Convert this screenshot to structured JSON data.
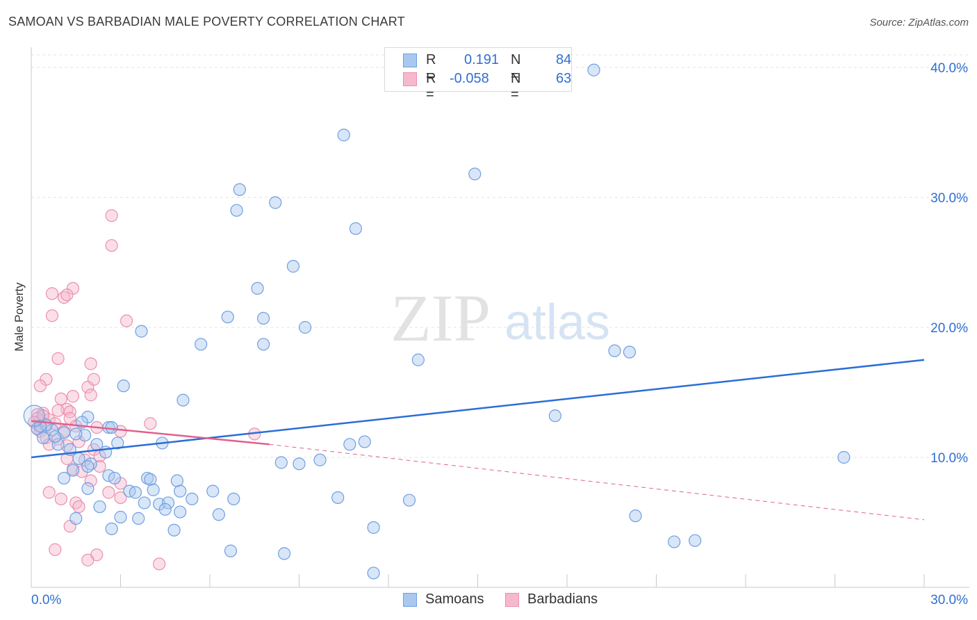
{
  "header": {
    "title": "SAMOAN VS BARBADIAN MALE POVERTY CORRELATION CHART",
    "source": "Source: ZipAtlas.com"
  },
  "watermark": {
    "zip": "ZIP",
    "atlas": "atlas"
  },
  "legend": {
    "r_label": "R =",
    "n_label": "N =",
    "samoans": {
      "r": "0.191",
      "n": "84"
    },
    "barbadians": {
      "r": "-0.058",
      "n": "63"
    }
  },
  "colors": {
    "samoans_fill": "#a9c8f0",
    "samoans_stroke": "#6f9fe0",
    "samoans_line": "#2a6ed6",
    "barbadians_fill": "#f6b8cc",
    "barbadians_stroke": "#ea8fae",
    "barbadians_line": "#e0608c",
    "axis_text": "#2f6fd0"
  },
  "chart_data": {
    "type": "scatter",
    "title": "SAMOAN VS BARBADIAN MALE POVERTY CORRELATION CHART",
    "xlabel": "",
    "ylabel": "Male Poverty",
    "xlim": [
      0,
      30
    ],
    "ylim": [
      0,
      40
    ],
    "x_tick_labels": [
      "0.0%",
      "30.0%"
    ],
    "y_ticks": [
      10,
      20,
      30,
      40
    ],
    "y_tick_labels": [
      "10.0%",
      "20.0%",
      "30.0%",
      "40.0%"
    ],
    "grid": true,
    "legend_position": "top-center and bottom",
    "series": [
      {
        "name": "Samoans",
        "trend": {
          "x": [
            0,
            30
          ],
          "y": [
            10.0,
            17.5
          ]
        },
        "points": [
          [
            18.9,
            39.8
          ],
          [
            10.5,
            34.8
          ],
          [
            14.9,
            31.8
          ],
          [
            7.0,
            30.6
          ],
          [
            8.2,
            29.6
          ],
          [
            6.9,
            29.0
          ],
          [
            10.9,
            27.6
          ],
          [
            8.8,
            24.7
          ],
          [
            7.6,
            23.0
          ],
          [
            6.6,
            20.8
          ],
          [
            7.8,
            20.7
          ],
          [
            9.2,
            20.0
          ],
          [
            3.7,
            19.7
          ],
          [
            7.8,
            18.7
          ],
          [
            5.7,
            18.7
          ],
          [
            13.0,
            17.5
          ],
          [
            19.6,
            18.2
          ],
          [
            20.1,
            18.1
          ],
          [
            3.1,
            15.5
          ],
          [
            5.1,
            14.4
          ],
          [
            17.6,
            13.2
          ],
          [
            1.9,
            13.1
          ],
          [
            2.6,
            12.3
          ],
          [
            2.7,
            12.3
          ],
          [
            1.8,
            11.7
          ],
          [
            1.7,
            12.7
          ],
          [
            1.5,
            11.8
          ],
          [
            2.2,
            11.0
          ],
          [
            2.9,
            11.1
          ],
          [
            4.4,
            11.1
          ],
          [
            11.2,
            11.2
          ],
          [
            10.7,
            11.0
          ],
          [
            1.1,
            11.9
          ],
          [
            0.7,
            12.1
          ],
          [
            0.9,
            11.0
          ],
          [
            0.2,
            12.2
          ],
          [
            0.5,
            12.5
          ],
          [
            0.4,
            11.5
          ],
          [
            0.8,
            11.6
          ],
          [
            0.3,
            12.4
          ],
          [
            1.3,
            10.6
          ],
          [
            2.5,
            10.4
          ],
          [
            1.6,
            9.9
          ],
          [
            8.4,
            9.6
          ],
          [
            9.0,
            9.5
          ],
          [
            9.7,
            9.8
          ],
          [
            2.0,
            9.5
          ],
          [
            1.9,
            9.3
          ],
          [
            1.4,
            9.0
          ],
          [
            1.1,
            8.4
          ],
          [
            2.6,
            8.6
          ],
          [
            2.8,
            8.4
          ],
          [
            3.9,
            8.4
          ],
          [
            4.0,
            8.3
          ],
          [
            4.9,
            8.2
          ],
          [
            3.3,
            7.4
          ],
          [
            3.5,
            7.3
          ],
          [
            5.0,
            7.4
          ],
          [
            4.1,
            7.5
          ],
          [
            6.1,
            7.4
          ],
          [
            3.8,
            6.5
          ],
          [
            4.3,
            6.4
          ],
          [
            4.6,
            6.5
          ],
          [
            4.5,
            6.0
          ],
          [
            5.4,
            6.8
          ],
          [
            6.8,
            6.8
          ],
          [
            10.3,
            6.9
          ],
          [
            12.7,
            6.7
          ],
          [
            1.9,
            7.6
          ],
          [
            2.3,
            6.2
          ],
          [
            3.0,
            5.4
          ],
          [
            3.6,
            5.3
          ],
          [
            5.0,
            5.8
          ],
          [
            6.3,
            5.6
          ],
          [
            1.5,
            5.3
          ],
          [
            2.7,
            4.5
          ],
          [
            4.8,
            4.4
          ],
          [
            11.5,
            4.6
          ],
          [
            20.3,
            5.5
          ],
          [
            21.6,
            3.5
          ],
          [
            22.3,
            3.6
          ],
          [
            6.7,
            2.8
          ],
          [
            8.5,
            2.6
          ],
          [
            11.5,
            1.1
          ],
          [
            27.3,
            10.0
          ]
        ]
      },
      {
        "name": "Barbadians",
        "trend": {
          "x": [
            0,
            8
          ],
          "y": [
            12.8,
            11.0
          ]
        },
        "trend_dashed": {
          "x": [
            8,
            30
          ],
          "y": [
            11.0,
            5.2
          ]
        },
        "points": [
          [
            2.7,
            28.6
          ],
          [
            2.7,
            26.3
          ],
          [
            1.4,
            23.0
          ],
          [
            0.7,
            22.6
          ],
          [
            1.1,
            22.3
          ],
          [
            1.2,
            22.5
          ],
          [
            0.7,
            20.9
          ],
          [
            3.2,
            20.5
          ],
          [
            0.9,
            17.6
          ],
          [
            2.0,
            17.2
          ],
          [
            0.5,
            16.0
          ],
          [
            2.1,
            16.0
          ],
          [
            1.9,
            15.4
          ],
          [
            0.3,
            15.5
          ],
          [
            1.4,
            14.7
          ],
          [
            1.0,
            14.5
          ],
          [
            2.0,
            14.8
          ],
          [
            1.2,
            13.7
          ],
          [
            1.3,
            13.5
          ],
          [
            0.9,
            13.6
          ],
          [
            0.4,
            13.4
          ],
          [
            0.2,
            13.3
          ],
          [
            0.6,
            12.9
          ],
          [
            1.3,
            13.0
          ],
          [
            0.3,
            12.8
          ],
          [
            0.5,
            12.4
          ],
          [
            0.8,
            12.6
          ],
          [
            1.1,
            12.0
          ],
          [
            1.5,
            12.4
          ],
          [
            2.2,
            12.3
          ],
          [
            3.0,
            12.0
          ],
          [
            4.0,
            12.6
          ],
          [
            0.3,
            12.0
          ],
          [
            0.5,
            11.5
          ],
          [
            0.6,
            11.0
          ],
          [
            0.9,
            11.4
          ],
          [
            1.2,
            10.9
          ],
          [
            1.6,
            11.2
          ],
          [
            2.1,
            10.6
          ],
          [
            2.3,
            10.1
          ],
          [
            1.2,
            9.9
          ],
          [
            1.8,
            9.8
          ],
          [
            2.3,
            9.3
          ],
          [
            1.4,
            9.1
          ],
          [
            1.7,
            8.9
          ],
          [
            2.0,
            8.2
          ],
          [
            3.0,
            8.0
          ],
          [
            2.6,
            7.3
          ],
          [
            0.6,
            7.3
          ],
          [
            1.0,
            6.8
          ],
          [
            3.0,
            6.9
          ],
          [
            1.5,
            6.5
          ],
          [
            1.6,
            6.2
          ],
          [
            7.5,
            11.8
          ],
          [
            1.3,
            4.7
          ],
          [
            0.8,
            2.9
          ],
          [
            2.2,
            2.5
          ],
          [
            1.9,
            2.1
          ],
          [
            4.3,
            1.8
          ],
          [
            0.2,
            13.0
          ],
          [
            0.4,
            13.2
          ],
          [
            0.2,
            12.2
          ],
          [
            0.1,
            12.7
          ]
        ]
      }
    ]
  },
  "bottom_legend": {
    "samoans": "Samoans",
    "barbadians": "Barbadians"
  }
}
